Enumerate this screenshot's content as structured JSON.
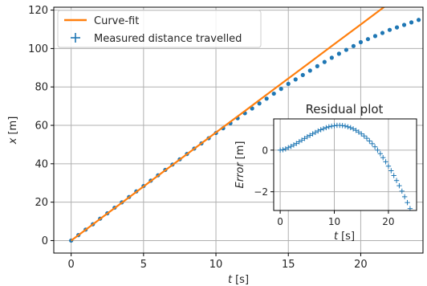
{
  "chart_data": [
    {
      "type": "line",
      "xlabel": "t",
      "xlabel_unit": "[s]",
      "ylabel": "x",
      "ylabel_unit": "[m]",
      "xlim": [
        -1.2,
        24.3
      ],
      "ylim": [
        -6.5,
        121.5
      ],
      "xticks": [
        0,
        5,
        10,
        15,
        20
      ],
      "yticks": [
        0,
        20,
        40,
        60,
        80,
        100,
        120
      ],
      "grid": true,
      "legend": {
        "position": "top-left",
        "entries": [
          "Curve-fit",
          "Measured distance travelled"
        ]
      },
      "series": [
        {
          "name": "Curve-fit",
          "kind": "line",
          "color": "#ff7f0e",
          "x": [
            0,
            2,
            4,
            6,
            8,
            10,
            12,
            14,
            16,
            18,
            20,
            22,
            24
          ],
          "y": [
            0,
            11.3,
            22.5,
            33.8,
            45.0,
            56.3,
            67.5,
            78.8,
            90.0,
            101.3,
            112.5,
            123.8,
            135
          ]
        },
        {
          "name": "Measured distance travelled",
          "kind": "scatter",
          "color": "#1f77b4",
          "x": [
            0,
            0.5,
            1,
            1.5,
            2,
            2.5,
            3,
            3.5,
            4,
            4.5,
            5,
            5.5,
            6,
            6.5,
            7,
            7.5,
            8,
            8.5,
            9,
            9.5,
            10,
            10.5,
            11,
            11.5,
            12,
            12.5,
            13,
            13.5,
            14,
            14.5,
            15,
            15.5,
            16,
            16.5,
            17,
            17.5,
            18,
            18.5,
            19,
            19.5,
            20,
            20.5,
            21,
            21.5,
            22,
            22.5,
            23,
            23.5,
            24
          ],
          "y": [
            0,
            2.85,
            5.7,
            8.5,
            11.4,
            14.2,
            17.1,
            19.9,
            22.7,
            25.6,
            28.4,
            31.2,
            34.0,
            36.8,
            39.6,
            42.3,
            45.1,
            47.9,
            50.6,
            53.3,
            56.0,
            58.5,
            61.1,
            63.7,
            66.3,
            68.8,
            71.4,
            73.9,
            76.5,
            79.0,
            81.6,
            83.9,
            86.2,
            88.5,
            90.8,
            93.0,
            95.2,
            97.3,
            99.3,
            101.3,
            103.3,
            104.9,
            106.5,
            108.1,
            109.7,
            111.0,
            112.3,
            113.6,
            114.9
          ]
        }
      ]
    },
    {
      "type": "scatter",
      "title": "Residual plot",
      "xlabel": "t",
      "xlabel_unit": "[s]",
      "ylabel": "Error",
      "ylabel_unit": "[m]",
      "xlim": [
        -1.2,
        25.2
      ],
      "ylim": [
        -2.9,
        1.5
      ],
      "xticks": [
        0,
        10,
        20
      ],
      "yticks": [
        0,
        -2
      ],
      "grid": true,
      "series": [
        {
          "name": "Residual",
          "kind": "plus",
          "color": "#1f77b4",
          "x": [
            0,
            0.5,
            1,
            1.5,
            2,
            2.5,
            3,
            3.5,
            4,
            4.5,
            5,
            5.5,
            6,
            6.5,
            7,
            7.5,
            8,
            8.5,
            9,
            9.5,
            10,
            10.5,
            11,
            11.5,
            12,
            12.5,
            13,
            13.5,
            14,
            14.5,
            15,
            15.5,
            16,
            16.5,
            17,
            17.5,
            18,
            18.5,
            19,
            19.5,
            20,
            20.5,
            21,
            21.5,
            22,
            22.5,
            23,
            23.5,
            24
          ],
          "y": [
            0,
            0.02,
            0.06,
            0.12,
            0.18,
            0.25,
            0.32,
            0.4,
            0.48,
            0.56,
            0.64,
            0.71,
            0.78,
            0.85,
            0.92,
            0.98,
            1.03,
            1.08,
            1.12,
            1.15,
            1.17,
            1.19,
            1.19,
            1.18,
            1.16,
            1.12,
            1.08,
            1.02,
            0.95,
            0.87,
            0.78,
            0.68,
            0.57,
            0.44,
            0.31,
            0.16,
            0.0,
            -0.17,
            -0.36,
            -0.56,
            -0.77,
            -0.99,
            -1.22,
            -1.46,
            -1.71,
            -1.97,
            -2.24,
            -2.52,
            -2.81
          ]
        }
      ]
    }
  ]
}
